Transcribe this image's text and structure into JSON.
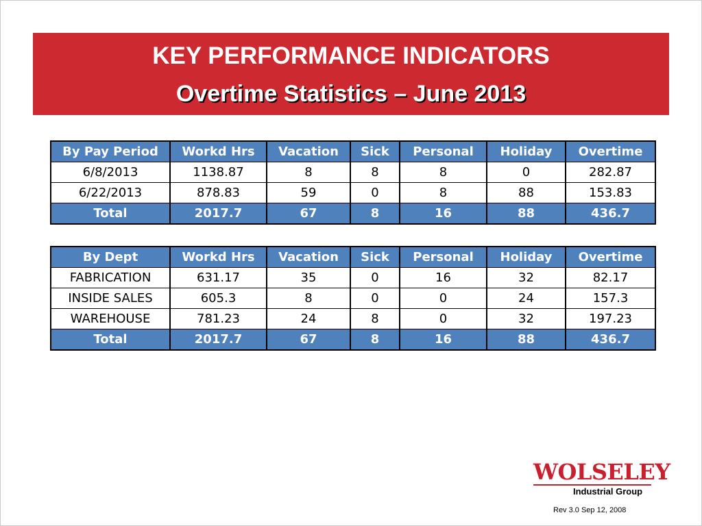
{
  "header": {
    "title": "KEY PERFORMANCE INDICATORS",
    "subtitle": "Overtime Statistics – June 2013"
  },
  "pay_period_table": {
    "headers": [
      "By Pay Period",
      "Workd Hrs",
      "Vacation",
      "Sick",
      "Personal",
      "Holiday",
      "Overtime"
    ],
    "rows": [
      [
        "6/8/2013",
        "1138.87",
        "8",
        "8",
        "8",
        "0",
        "282.87"
      ],
      [
        "6/22/2013",
        "878.83",
        "59",
        "0",
        "8",
        "88",
        "153.83"
      ]
    ],
    "total": [
      "Total",
      "2017.7",
      "67",
      "8",
      "16",
      "88",
      "436.7"
    ]
  },
  "dept_table": {
    "headers": [
      "By Dept",
      "Workd Hrs",
      "Vacation",
      "Sick",
      "Personal",
      "Holiday",
      "Overtime"
    ],
    "rows": [
      [
        "FABRICATION",
        "631.17",
        "35",
        "0",
        "16",
        "32",
        "82.17"
      ],
      [
        "INSIDE SALES",
        "605.3",
        "8",
        "0",
        "0",
        "24",
        "157.3"
      ],
      [
        "WAREHOUSE",
        "781.23",
        "24",
        "8",
        "0",
        "32",
        "197.23"
      ]
    ],
    "total": [
      "Total",
      "2017.7",
      "67",
      "8",
      "16",
      "88",
      "436.7"
    ]
  },
  "footer": {
    "logo_text": "WOLSELEY",
    "logo_subtext": "Industrial Group",
    "revision": "Rev 3.0 Sep 12, 2008"
  },
  "colors": {
    "banner": "#cc2a30",
    "table_header": "#4f81bd",
    "logo": "#c8202f"
  }
}
